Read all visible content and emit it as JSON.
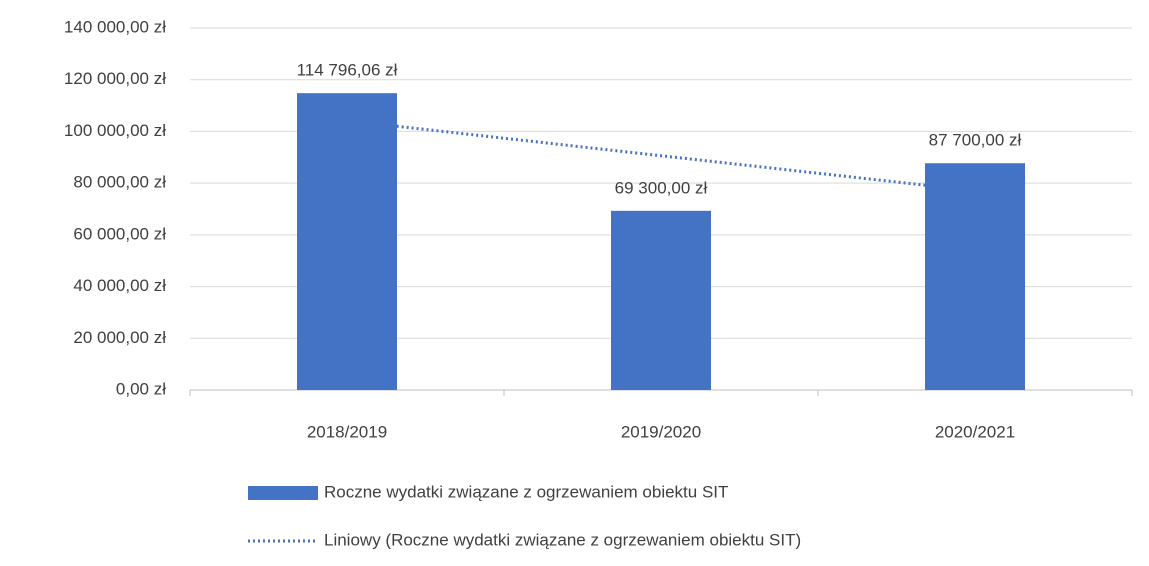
{
  "chart_data": {
    "type": "bar",
    "categories": [
      "2018/2019",
      "2019/2020",
      "2020/2021"
    ],
    "series": [
      {
        "name": "Roczne wydatki związane z ogrzewaniem obiektu SIT",
        "color": "#4472c4",
        "values": [
          114796.06,
          69300,
          87700
        ],
        "value_labels": [
          "114 796,06 zł",
          "69 300,00 zł",
          "87 700,00 zł"
        ]
      },
      {
        "name": "Liniowy (Roczne wydatki związane z ogrzewaniem obiektu SIT)",
        "color": "#4472c4",
        "type": "trendline",
        "values": [
          104146.72,
          90598.69,
          77050.66
        ]
      }
    ],
    "ylim": [
      0,
      140000
    ],
    "yticks": [
      {
        "value": 0,
        "label": "0,00 zł"
      },
      {
        "value": 20000,
        "label": "20 000,00 zł"
      },
      {
        "value": 40000,
        "label": "40 000,00 zł"
      },
      {
        "value": 60000,
        "label": "60 000,00 zł"
      },
      {
        "value": 80000,
        "label": "80 000,00 zł"
      },
      {
        "value": 100000,
        "label": "100 000,00 zł"
      },
      {
        "value": 120000,
        "label": "120 000,00 zł"
      },
      {
        "value": 140000,
        "label": "140 000,00 zł"
      }
    ],
    "grid": true,
    "legend": "bottom"
  }
}
